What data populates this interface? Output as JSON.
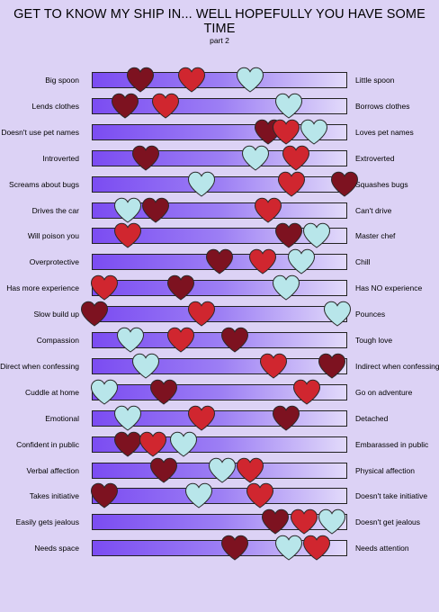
{
  "title": "GET TO KNOW MY SHIP IN... WELL HOPEFULLY YOU HAVE SOME TIME",
  "subtitle": "part 2",
  "colors": {
    "dark_red_heart": "#7d1220",
    "red_heart": "#d0262f",
    "light_blue_heart": "#b8e6ea",
    "bar_left": "#7b4cf2",
    "bar_right": "#e2dafa",
    "background": "#dcd2f5"
  },
  "rows": [
    {
      "left": "Big spoon",
      "right": "Little spoon",
      "darkred": 0.19,
      "red": 0.39,
      "lightblue": 0.62
    },
    {
      "left": "Lends clothes",
      "right": "Borrows clothes",
      "darkred": 0.13,
      "red": 0.29,
      "lightblue": 0.77
    },
    {
      "left": "Doesn't use pet names",
      "right": "Loves pet names",
      "darkred": 0.69,
      "red": 0.76,
      "lightblue": 0.87
    },
    {
      "left": "Introverted",
      "right": "Extroverted",
      "darkred": 0.21,
      "red": 0.8,
      "lightblue": 0.64
    },
    {
      "left": "Screams about bugs",
      "right": "Squashes bugs",
      "darkred": 0.99,
      "red": 0.78,
      "lightblue": 0.43
    },
    {
      "left": "Drives the car",
      "right": "Can't drive",
      "darkred": 0.25,
      "red": 0.69,
      "lightblue": 0.14
    },
    {
      "left": "Will poison you",
      "right": "Master chef",
      "darkred": 0.77,
      "red": 0.14,
      "lightblue": 0.88
    },
    {
      "left": "Overprotective",
      "right": "Chill",
      "darkred": 0.5,
      "red": 0.67,
      "lightblue": 0.82
    },
    {
      "left": "Has more experience",
      "right": "Has NO experience",
      "darkred": 0.35,
      "red": 0.05,
      "lightblue": 0.76
    },
    {
      "left": "Slow build up",
      "right": "Pounces",
      "darkred": 0.01,
      "red": 0.43,
      "lightblue": 0.96
    },
    {
      "left": "Compassion",
      "right": "Tough love",
      "darkred": 0.56,
      "red": 0.35,
      "lightblue": 0.15
    },
    {
      "left": "Direct when confessing",
      "right": "Indirect when confessing",
      "darkred": 0.94,
      "red": 0.71,
      "lightblue": 0.21
    },
    {
      "left": "Cuddle at home",
      "right": "Go on  adventure",
      "darkred": 0.28,
      "red": 0.84,
      "lightblue": 0.05
    },
    {
      "left": "Emotional",
      "right": "Detached",
      "darkred": 0.76,
      "red": 0.43,
      "lightblue": 0.14
    },
    {
      "left": "Confident in public",
      "right": "Embarassed in public",
      "darkred": 0.14,
      "red": 0.24,
      "lightblue": 0.36
    },
    {
      "left": "Verbal affection",
      "right": "Physical affection",
      "darkred": 0.28,
      "red": 0.62,
      "lightblue": 0.51
    },
    {
      "left": "Takes initiative",
      "right": "Doesn't take initiative",
      "darkred": 0.05,
      "red": 0.66,
      "lightblue": 0.42
    },
    {
      "left": "Easily gets jealous",
      "right": "Doesn't get jealous",
      "darkred": 0.72,
      "red": 0.83,
      "lightblue": 0.94
    },
    {
      "left": "Needs space",
      "right": "Needs attention",
      "darkred": 0.56,
      "red": 0.88,
      "lightblue": 0.77
    }
  ]
}
